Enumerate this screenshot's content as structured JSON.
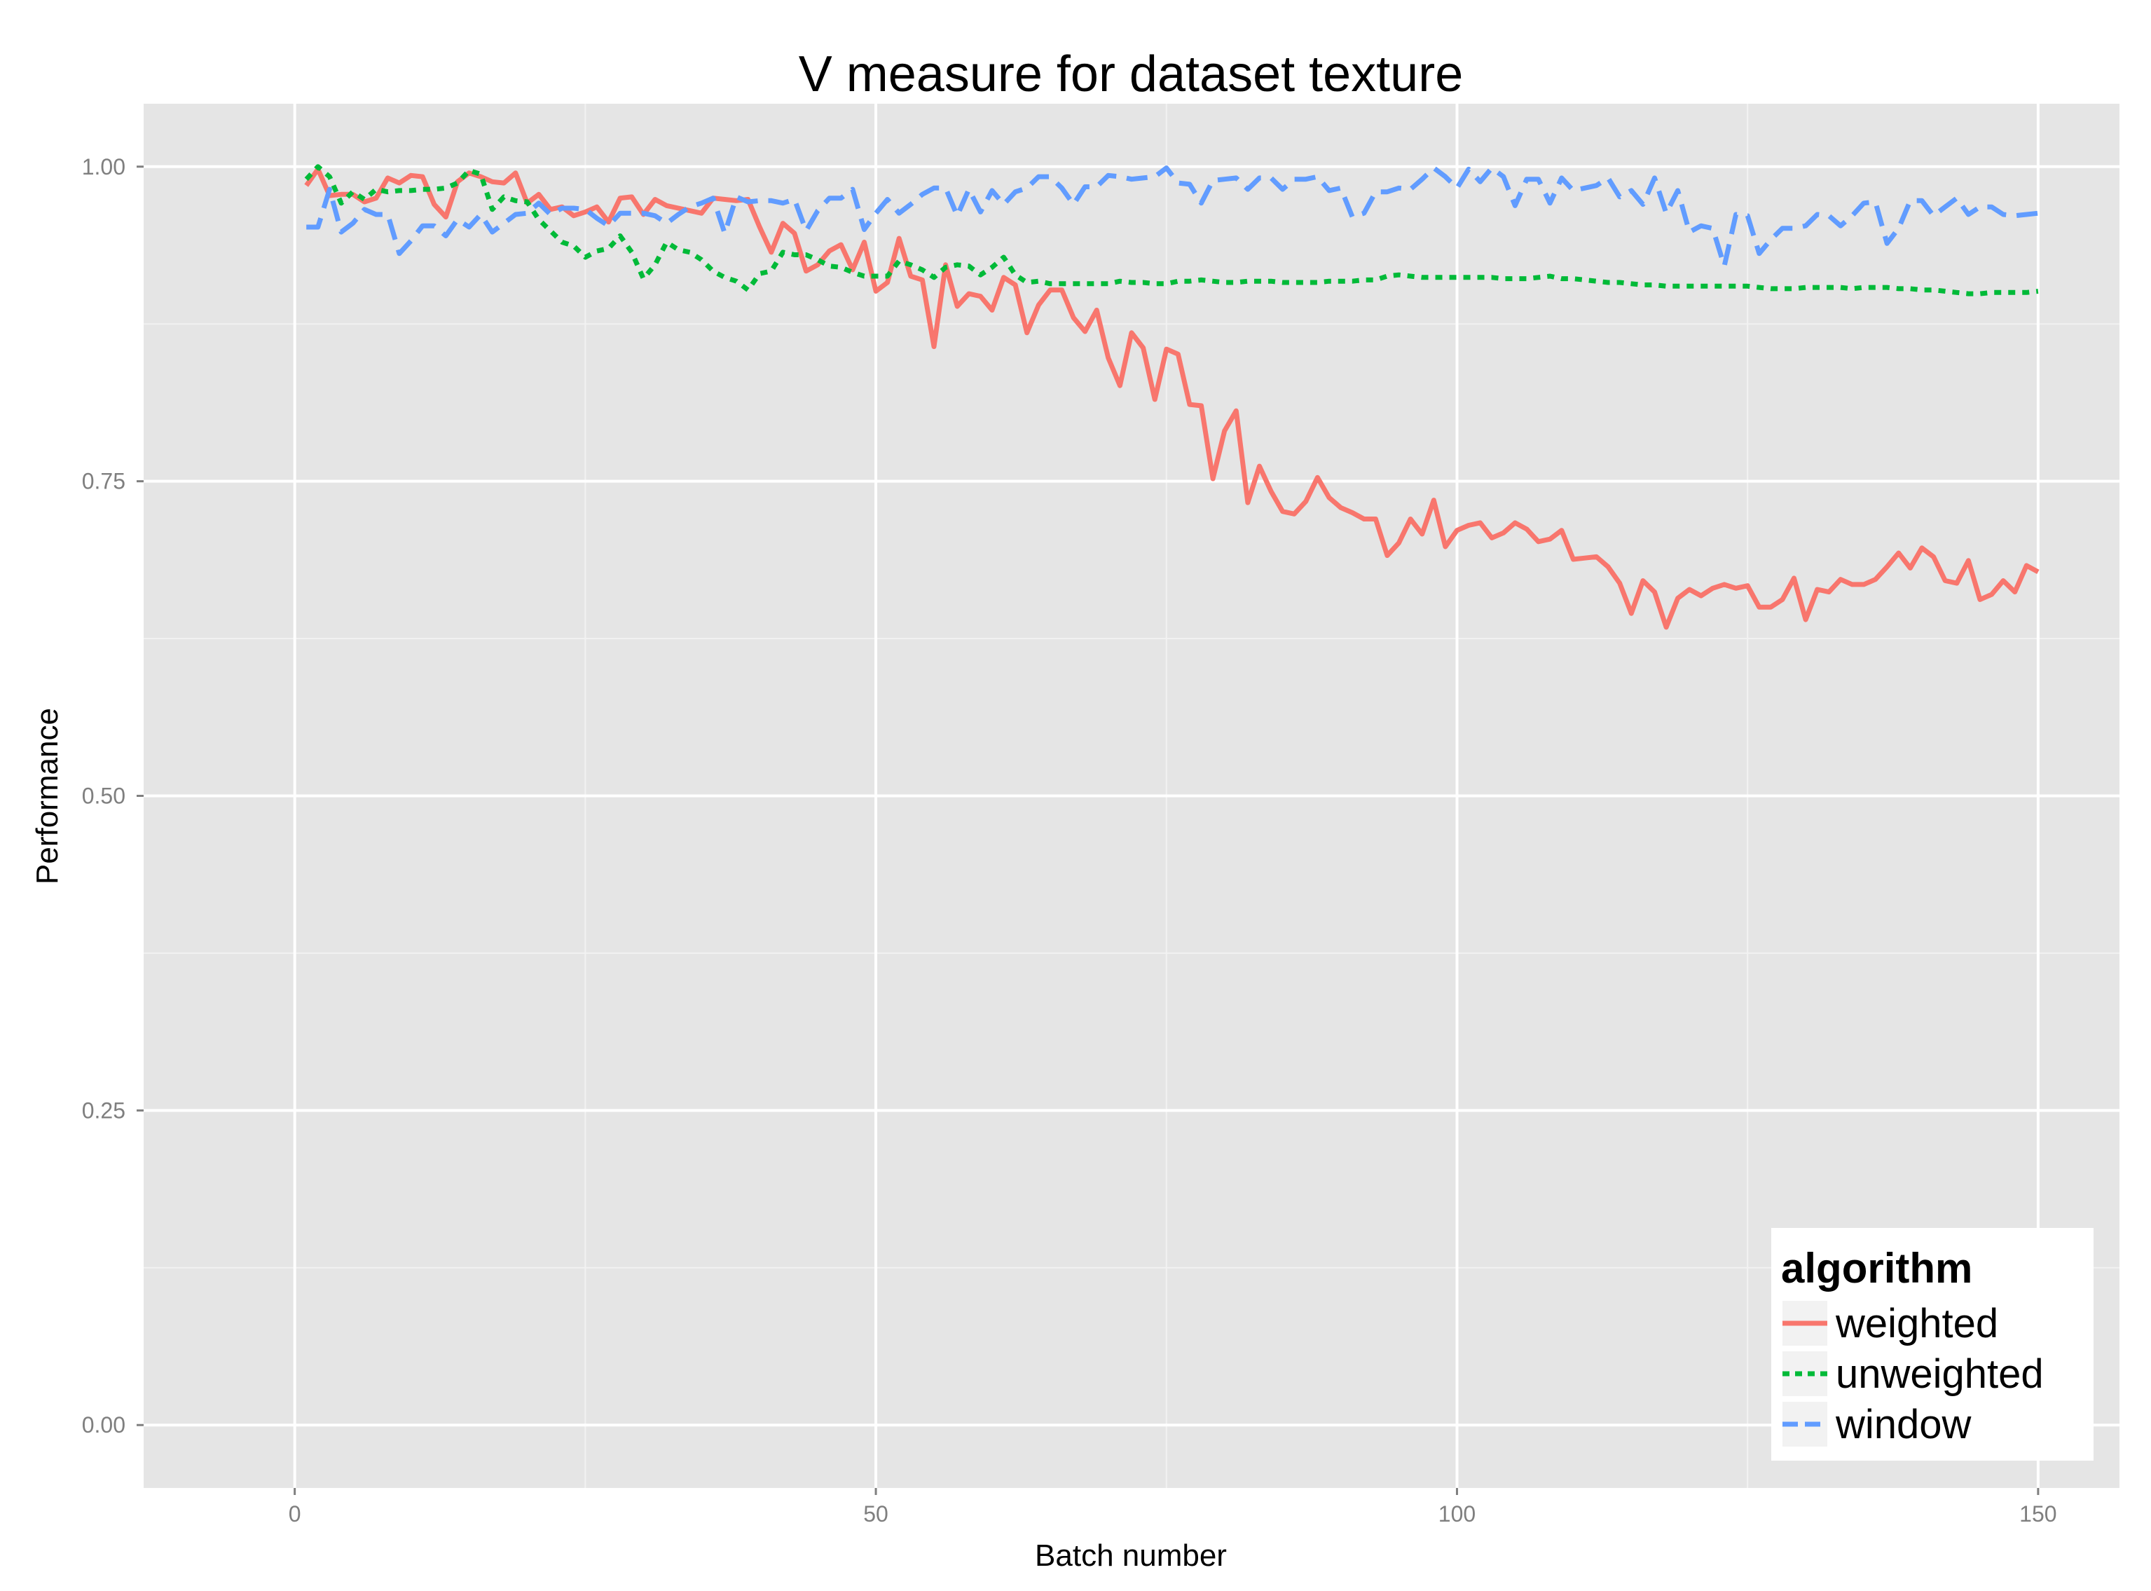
{
  "chart_data": {
    "type": "line",
    "title": "V measure for dataset texture",
    "xlabel": "Batch number",
    "ylabel": "Performance",
    "xlim": [
      -13,
      157
    ],
    "ylim": [
      -0.05,
      1.05
    ],
    "x_ticks": [
      0,
      50,
      100,
      150
    ],
    "x_tick_labels": [
      "0",
      "50",
      "100",
      "150"
    ],
    "y_ticks": [
      0,
      0.25,
      0.5,
      0.75,
      1
    ],
    "y_tick_labels": [
      "0.00",
      "0.25",
      "0.50",
      "0.75",
      "1.00"
    ],
    "grid": true,
    "legend": {
      "title": "algorithm",
      "position": "bottom-right"
    },
    "series": [
      {
        "name": "weighted",
        "color": "#F8766D",
        "dash": "solid",
        "x": [
          1,
          2,
          3,
          4,
          5,
          6,
          7,
          8,
          9,
          10,
          11,
          12,
          13,
          14,
          15,
          16,
          17,
          18,
          19,
          20,
          21,
          22,
          23,
          24,
          25,
          26,
          27,
          28,
          29,
          30,
          31,
          32,
          33,
          34,
          35,
          36,
          37,
          38,
          39,
          40,
          41,
          42,
          43,
          44,
          45,
          46,
          47,
          48,
          49,
          50,
          51,
          52,
          53,
          54,
          55,
          56,
          57,
          58,
          59,
          60,
          61,
          62,
          63,
          64,
          65,
          66,
          67,
          68,
          69,
          70,
          71,
          72,
          73,
          74,
          75,
          76,
          77,
          78,
          79,
          80,
          81,
          82,
          83,
          84,
          85,
          86,
          87,
          88,
          89,
          90,
          91,
          92,
          93,
          94,
          95,
          96,
          97,
          98,
          99,
          100,
          101,
          102,
          103,
          104,
          105,
          106,
          107,
          108,
          109,
          110,
          111,
          112,
          113,
          114,
          115,
          116,
          117,
          118,
          119,
          120,
          121,
          122,
          123,
          124,
          125,
          126,
          127,
          128,
          129,
          130,
          131,
          132,
          133,
          134,
          135,
          136,
          137,
          138,
          139,
          140,
          141,
          142,
          143,
          144,
          145,
          146,
          147,
          148,
          149,
          150
        ],
        "y": [
          0.985,
          0.998,
          0.977,
          0.978,
          0.978,
          0.972,
          0.975,
          0.991,
          0.987,
          0.993,
          0.992,
          0.97,
          0.96,
          0.988,
          0.995,
          0.992,
          0.988,
          0.987,
          0.995,
          0.971,
          0.978,
          0.966,
          0.968,
          0.961,
          0.964,
          0.968,
          0.956,
          0.975,
          0.976,
          0.962,
          0.974,
          0.969,
          0.967,
          0.965,
          0.963,
          0.975,
          0.974,
          0.973,
          0.974,
          0.952,
          0.932,
          0.955,
          0.947,
          0.917,
          0.922,
          0.933,
          0.938,
          0.918,
          0.94,
          0.901,
          0.908,
          0.943,
          0.913,
          0.91,
          0.857,
          0.922,
          0.889,
          0.899,
          0.897,
          0.886,
          0.912,
          0.906,
          0.868,
          0.89,
          0.902,
          0.902,
          0.88,
          0.869,
          0.886,
          0.848,
          0.826,
          0.868,
          0.856,
          0.815,
          0.855,
          0.851,
          0.811,
          0.81,
          0.752,
          0.79,
          0.806,
          0.733,
          0.762,
          0.742,
          0.726,
          0.724,
          0.734,
          0.753,
          0.737,
          0.729,
          0.725,
          0.72,
          0.72,
          0.691,
          0.701,
          0.72,
          0.708,
          0.735,
          0.698,
          0.711,
          0.715,
          0.717,
          0.705,
          0.709,
          0.717,
          0.712,
          0.702,
          0.704,
          0.711,
          0.688,
          0.689,
          0.69,
          0.682,
          0.669,
          0.645,
          0.671,
          0.662,
          0.634,
          0.657,
          0.664,
          0.659,
          0.665,
          0.668,
          0.665,
          0.667,
          0.65,
          0.65,
          0.656,
          0.673,
          0.64,
          0.664,
          0.662,
          0.672,
          0.668,
          0.668,
          0.672,
          0.682,
          0.693,
          0.681,
          0.697,
          0.69,
          0.671,
          0.669,
          0.687,
          0.656,
          0.66,
          0.671,
          0.662,
          0.683,
          0.678
        ]
      },
      {
        "name": "unweighted",
        "color": "#00BA38",
        "dash": "dotted",
        "x": [
          1,
          2,
          3,
          4,
          5,
          6,
          7,
          8,
          9,
          10,
          11,
          12,
          13,
          14,
          15,
          16,
          17,
          18,
          19,
          20,
          21,
          22,
          23,
          24,
          25,
          26,
          27,
          28,
          29,
          30,
          31,
          32,
          33,
          34,
          35,
          36,
          37,
          38,
          39,
          40,
          41,
          42,
          43,
          44,
          45,
          46,
          47,
          48,
          49,
          50,
          51,
          52,
          53,
          54,
          55,
          56,
          57,
          58,
          59,
          60,
          61,
          62,
          63,
          64,
          65,
          66,
          67,
          68,
          69,
          70,
          71,
          72,
          73,
          74,
          75,
          76,
          77,
          78,
          79,
          80,
          81,
          82,
          83,
          84,
          85,
          86,
          87,
          88,
          89,
          90,
          91,
          92,
          93,
          94,
          95,
          96,
          97,
          98,
          99,
          100,
          101,
          102,
          103,
          104,
          105,
          106,
          107,
          108,
          109,
          110,
          111,
          112,
          113,
          114,
          115,
          116,
          117,
          118,
          119,
          120,
          121,
          122,
          123,
          124,
          125,
          126,
          127,
          128,
          129,
          130,
          131,
          132,
          133,
          134,
          135,
          136,
          137,
          138,
          139,
          140,
          141,
          142,
          143,
          144,
          145,
          146,
          147,
          148,
          149,
          150
        ],
        "y": [
          0.99,
          1.0,
          0.992,
          0.971,
          0.98,
          0.974,
          0.982,
          0.98,
          0.981,
          0.981,
          0.982,
          0.982,
          0.983,
          0.987,
          0.997,
          0.994,
          0.966,
          0.976,
          0.973,
          0.972,
          0.958,
          0.949,
          0.94,
          0.937,
          0.928,
          0.933,
          0.935,
          0.945,
          0.932,
          0.911,
          0.922,
          0.94,
          0.934,
          0.932,
          0.926,
          0.917,
          0.912,
          0.909,
          0.902,
          0.915,
          0.917,
          0.932,
          0.93,
          0.93,
          0.926,
          0.921,
          0.92,
          0.916,
          0.913,
          0.913,
          0.913,
          0.925,
          0.922,
          0.918,
          0.912,
          0.92,
          0.922,
          0.921,
          0.914,
          0.92,
          0.928,
          0.914,
          0.908,
          0.909,
          0.907,
          0.907,
          0.907,
          0.907,
          0.907,
          0.907,
          0.909,
          0.908,
          0.908,
          0.907,
          0.907,
          0.909,
          0.909,
          0.91,
          0.909,
          0.908,
          0.908,
          0.909,
          0.909,
          0.909,
          0.908,
          0.908,
          0.908,
          0.908,
          0.909,
          0.909,
          0.909,
          0.91,
          0.91,
          0.913,
          0.914,
          0.913,
          0.912,
          0.912,
          0.912,
          0.912,
          0.912,
          0.912,
          0.912,
          0.911,
          0.911,
          0.911,
          0.912,
          0.913,
          0.911,
          0.911,
          0.91,
          0.909,
          0.908,
          0.908,
          0.907,
          0.906,
          0.906,
          0.905,
          0.905,
          0.905,
          0.905,
          0.905,
          0.905,
          0.905,
          0.905,
          0.904,
          0.903,
          0.903,
          0.903,
          0.904,
          0.904,
          0.904,
          0.904,
          0.903,
          0.904,
          0.904,
          0.904,
          0.903,
          0.903,
          0.902,
          0.902,
          0.901,
          0.9,
          0.899,
          0.899,
          0.9,
          0.9,
          0.9,
          0.9,
          0.901
        ]
      },
      {
        "name": "window",
        "color": "#619CFF",
        "dash": "dashed",
        "x": [
          1,
          2,
          3,
          4,
          5,
          6,
          7,
          8,
          9,
          10,
          11,
          12,
          13,
          14,
          15,
          16,
          17,
          18,
          19,
          20,
          21,
          22,
          23,
          24,
          25,
          26,
          27,
          28,
          29,
          30,
          31,
          32,
          33,
          34,
          35,
          36,
          37,
          38,
          39,
          40,
          41,
          42,
          43,
          44,
          45,
          46,
          47,
          48,
          49,
          50,
          51,
          52,
          53,
          54,
          55,
          56,
          57,
          58,
          59,
          60,
          61,
          62,
          63,
          64,
          65,
          66,
          67,
          68,
          69,
          70,
          71,
          72,
          73,
          74,
          75,
          76,
          77,
          78,
          79,
          80,
          81,
          82,
          83,
          84,
          85,
          86,
          87,
          88,
          89,
          90,
          91,
          92,
          93,
          94,
          95,
          96,
          97,
          98,
          99,
          100,
          101,
          102,
          103,
          104,
          105,
          106,
          107,
          108,
          109,
          110,
          111,
          112,
          113,
          114,
          115,
          116,
          117,
          118,
          119,
          120,
          121,
          122,
          123,
          124,
          125,
          126,
          127,
          128,
          129,
          130,
          131,
          132,
          133,
          134,
          135,
          136,
          137,
          138,
          139,
          140,
          141,
          142,
          143,
          144,
          145,
          146,
          147,
          148,
          149,
          150
        ],
        "y": [
          0.952,
          0.952,
          0.982,
          0.948,
          0.955,
          0.966,
          0.962,
          0.962,
          0.931,
          0.941,
          0.953,
          0.953,
          0.945,
          0.958,
          0.952,
          0.962,
          0.948,
          0.955,
          0.962,
          0.963,
          0.971,
          0.962,
          0.967,
          0.967,
          0.966,
          0.959,
          0.953,
          0.963,
          0.963,
          0.963,
          0.961,
          0.955,
          0.962,
          0.968,
          0.971,
          0.975,
          0.947,
          0.976,
          0.972,
          0.973,
          0.973,
          0.971,
          0.974,
          0.949,
          0.965,
          0.975,
          0.975,
          0.982,
          0.95,
          0.963,
          0.974,
          0.963,
          0.97,
          0.978,
          0.983,
          0.983,
          0.961,
          0.982,
          0.964,
          0.981,
          0.97,
          0.98,
          0.983,
          0.992,
          0.992,
          0.983,
          0.97,
          0.984,
          0.984,
          0.993,
          0.992,
          0.99,
          0.991,
          0.992,
          0.999,
          0.987,
          0.986,
          0.971,
          0.989,
          0.99,
          0.991,
          0.982,
          0.991,
          0.991,
          0.982,
          0.99,
          0.99,
          0.992,
          0.981,
          0.983,
          0.96,
          0.963,
          0.98,
          0.98,
          0.983,
          0.982,
          0.99,
          0.999,
          0.992,
          0.983,
          0.998,
          0.988,
          0.999,
          0.992,
          0.969,
          0.99,
          0.99,
          0.971,
          0.991,
          0.981,
          0.983,
          0.985,
          0.991,
          0.976,
          0.981,
          0.97,
          0.991,
          0.963,
          0.981,
          0.948,
          0.953,
          0.951,
          0.921,
          0.962,
          0.961,
          0.931,
          0.942,
          0.951,
          0.951,
          0.953,
          0.962,
          0.961,
          0.953,
          0.961,
          0.971,
          0.972,
          0.939,
          0.951,
          0.973,
          0.973,
          0.961,
          0.968,
          0.975,
          0.962,
          0.968,
          0.968,
          0.962,
          0.961,
          0.962,
          0.963
        ]
      }
    ]
  }
}
